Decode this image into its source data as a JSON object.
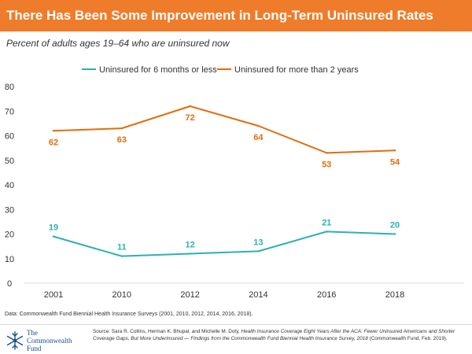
{
  "header": {
    "title": "There Has Been Some Improvement in Long-Term Uninsured Rates",
    "subtitle": "Percent of adults ages 19–64 who are uninsured now"
  },
  "chart_data": {
    "type": "line",
    "title": "",
    "xlabel": "",
    "ylabel": "",
    "categories": [
      "2001",
      "2010",
      "2012",
      "2014",
      "2016",
      "2018"
    ],
    "ylim": [
      0,
      80
    ],
    "yticks": [
      0,
      10,
      20,
      30,
      40,
      50,
      60,
      70,
      80
    ],
    "grid": false,
    "legend_position": "top",
    "series": [
      {
        "name": "Uninsured for 6 months or less",
        "color": "#2bb1b3",
        "values": [
          19,
          11,
          12,
          13,
          21,
          20
        ],
        "labels": [
          "19",
          "11",
          "12",
          "13",
          "21",
          "20"
        ]
      },
      {
        "name": "Uninsured for more than 2 years",
        "color": "#e46c0a",
        "values": [
          62,
          63,
          72,
          64,
          53,
          54
        ],
        "labels": [
          "62",
          "63",
          "72",
          "64",
          "53",
          "54"
        ]
      }
    ]
  },
  "data_source": "Data: Commonwealth Fund Biennial Health Insurance Surveys (2001, 2010, 2012, 2014, 2016, 2018).",
  "footer": {
    "logo_line1": "The",
    "logo_line2": "Commonwealth",
    "logo_line3": "Fund",
    "source_prefix": "Source: Sara R. Collins, Herman K. Bhupal, and Michelle M. Doty,",
    "source_title": "Health Insurance Coverage Eight Years After the ACA: Fewer Uninsured Americans and Shorter Coverage Gaps, But More Underinsured — Findings from the Commonwealth Fund Biennial Health Insurance Survey, 2018",
    "source_suffix": "(Commonwealth Fund, Feb. 2019)."
  },
  "colors": {
    "title_bar": "#ee7c2a",
    "short_term": "#2bb1b3",
    "long_term": "#e46c0a"
  }
}
